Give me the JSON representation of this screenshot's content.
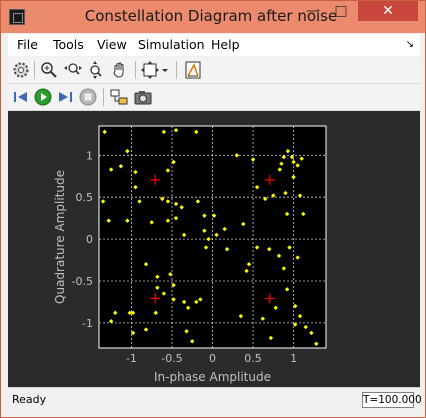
{
  "window": {
    "title": "Constellation Diagram after noise"
  },
  "titlebar": {
    "min": "—",
    "max": "□",
    "close": "✕"
  },
  "menu": [
    "File",
    "Tools",
    "View",
    "Simulation",
    "Help"
  ],
  "menu_arrow": "↘",
  "toolbar1": [
    {
      "name": "settings-icon"
    },
    {
      "name": "zoom-in-icon"
    },
    {
      "name": "zoom-x-icon"
    },
    {
      "name": "zoom-y-icon"
    },
    {
      "name": "pan-hand-icon"
    },
    {
      "name": "fit-axes-icon"
    },
    {
      "name": "dropdown-arrow-icon"
    },
    {
      "name": "measurements-icon"
    }
  ],
  "toolbar2": [
    {
      "name": "step-back-icon"
    },
    {
      "name": "run-icon"
    },
    {
      "name": "step-forward-icon"
    },
    {
      "name": "stop-icon"
    },
    {
      "name": "highlight-block-icon"
    },
    {
      "name": "snapshot-icon"
    }
  ],
  "status": {
    "text": "Ready",
    "time": "T=100.000"
  },
  "colors": {
    "background": "#000000",
    "points": "#ffff00",
    "reference": "#ff0000",
    "grid": "#ffffff",
    "axes_text": "#c0c0c0"
  },
  "chart_data": {
    "type": "scatter",
    "xlabel": "In-phase Amplitude",
    "ylabel": "Quadrature Amplitude",
    "xlim": [
      -1.4,
      1.4
    ],
    "ylim": [
      -1.3,
      1.35
    ],
    "xticks": [
      -1,
      -0.5,
      0,
      0.5,
      1
    ],
    "yticks": [
      -1,
      -0.5,
      0,
      0.5,
      1
    ],
    "xtick_labels": [
      "-1",
      "-0.5",
      "0",
      "0.5",
      "1"
    ],
    "ytick_labels": [
      "-1",
      "-0.5",
      "0",
      "0.5",
      "1"
    ],
    "grid": true,
    "reference_points": [
      [
        -0.707,
        0.707
      ],
      [
        0.707,
        0.707
      ],
      [
        -0.707,
        -0.707
      ],
      [
        0.707,
        -0.707
      ]
    ],
    "points": [
      [
        -1.33,
        1.28
      ],
      [
        -1.25,
        0.83
      ],
      [
        -1.05,
        1.05
      ],
      [
        -1.13,
        0.87
      ],
      [
        -0.95,
        0.8
      ],
      [
        -0.95,
        0.62
      ],
      [
        -0.6,
        1.28
      ],
      [
        -0.45,
        1.3
      ],
      [
        -0.2,
        1.28
      ],
      [
        0.5,
        0.95
      ],
      [
        0.85,
        0.9
      ],
      [
        0.93,
        1.05
      ],
      [
        0.98,
        0.98
      ],
      [
        1.0,
        0.92
      ],
      [
        1.05,
        0.88
      ],
      [
        1.1,
        0.96
      ],
      [
        0.88,
        0.98
      ],
      [
        0.83,
        0.83
      ],
      [
        1.0,
        0.74
      ],
      [
        1.08,
        0.52
      ],
      [
        0.9,
        0.55
      ],
      [
        0.75,
        0.52
      ],
      [
        0.65,
        0.48
      ],
      [
        0.55,
        0.62
      ],
      [
        0.3,
        1.0
      ],
      [
        -0.48,
        0.92
      ],
      [
        -0.55,
        0.82
      ],
      [
        -0.9,
        0.45
      ],
      [
        -1.35,
        0.45
      ],
      [
        -1.28,
        0.22
      ],
      [
        -1.05,
        0.22
      ],
      [
        -0.62,
        0.48
      ],
      [
        -0.55,
        0.45
      ],
      [
        -0.45,
        0.42
      ],
      [
        -0.38,
        0.38
      ],
      [
        -0.45,
        0.25
      ],
      [
        -0.55,
        0.22
      ],
      [
        -0.75,
        0.2
      ],
      [
        -0.18,
        0.45
      ],
      [
        -0.1,
        0.28
      ],
      [
        0.15,
        0.12
      ],
      [
        0.38,
        0.18
      ],
      [
        0.92,
        0.3
      ],
      [
        1.12,
        0.3
      ],
      [
        0.55,
        -0.1
      ],
      [
        0.7,
        -0.12
      ],
      [
        0.82,
        -0.2
      ],
      [
        0.95,
        -0.1
      ],
      [
        1.05,
        -0.22
      ],
      [
        0.88,
        -0.35
      ],
      [
        0.45,
        -0.3
      ],
      [
        0.42,
        -0.38
      ],
      [
        0.18,
        -0.12
      ],
      [
        -0.08,
        -0.1
      ],
      [
        -0.05,
        0.0
      ],
      [
        0.05,
        0.05
      ],
      [
        -0.1,
        0.1
      ],
      [
        -0.52,
        -0.42
      ],
      [
        -0.48,
        -0.55
      ],
      [
        -0.6,
        -0.65
      ],
      [
        -0.68,
        -0.45
      ],
      [
        -0.82,
        -0.3
      ],
      [
        -0.48,
        -0.72
      ],
      [
        -0.35,
        -0.75
      ],
      [
        -0.3,
        -0.82
      ],
      [
        -0.2,
        -0.75
      ],
      [
        -0.15,
        -0.72
      ],
      [
        0.62,
        -0.95
      ],
      [
        0.78,
        -0.82
      ],
      [
        1.02,
        -0.8
      ],
      [
        1.08,
        -0.92
      ],
      [
        1.15,
        -1.05
      ],
      [
        1.22,
        -1.12
      ],
      [
        1.28,
        -1.25
      ],
      [
        1.02,
        -1.02
      ],
      [
        -1.2,
        -0.88
      ],
      [
        -1.25,
        -0.98
      ],
      [
        -1.02,
        -0.88
      ],
      [
        -0.98,
        -1.12
      ],
      [
        -0.82,
        -1.08
      ],
      [
        -0.7,
        -0.88
      ],
      [
        -0.32,
        -1.1
      ],
      [
        -0.25,
        -1.22
      ],
      [
        0.35,
        -0.92
      ],
      [
        0.72,
        -1.18
      ],
      [
        -0.68,
        -0.58
      ],
      [
        0.02,
        0.28
      ],
      [
        0.92,
        -0.6
      ],
      [
        -0.98,
        -0.88
      ],
      [
        -0.35,
        0.05
      ]
    ]
  }
}
